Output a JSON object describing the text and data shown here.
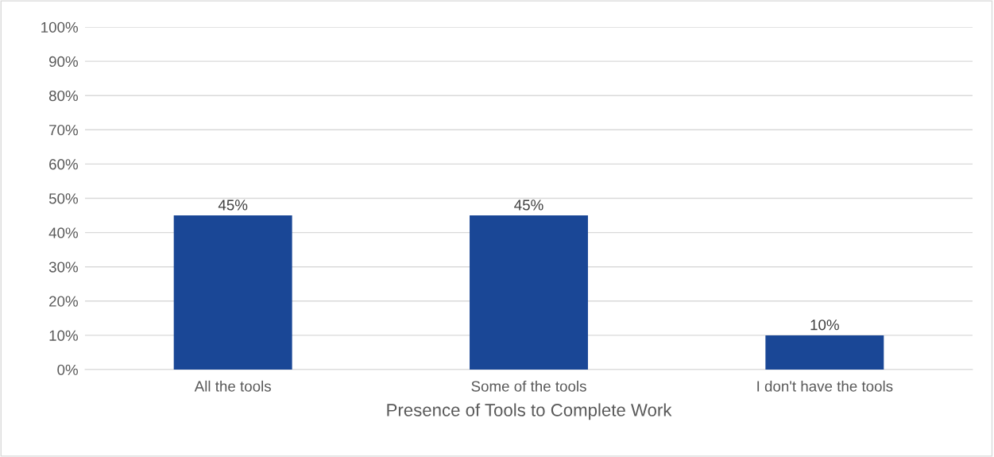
{
  "chart_data": {
    "type": "bar",
    "xlabel": "Presence of Tools to Complete Work",
    "categories": [
      "All the tools",
      "Some of the tools",
      "I don't have the tools"
    ],
    "values": [
      45,
      45,
      10
    ],
    "color": "#1a4796",
    "value_labels": [
      "45%",
      "45%",
      "10%"
    ],
    "ylim": [
      0,
      100
    ],
    "yticks": [
      {
        "value": 0,
        "label": "0%"
      },
      {
        "value": 10,
        "label": "10%"
      },
      {
        "value": 20,
        "label": "20%"
      },
      {
        "value": 30,
        "label": "30%"
      },
      {
        "value": 40,
        "label": "40%"
      },
      {
        "value": 50,
        "label": "50%"
      },
      {
        "value": 60,
        "label": "60%"
      },
      {
        "value": 70,
        "label": "70%"
      },
      {
        "value": 80,
        "label": "80%"
      },
      {
        "value": 90,
        "label": "90%"
      },
      {
        "value": 100,
        "label": "100%"
      }
    ],
    "grid": "y",
    "legend": false
  }
}
